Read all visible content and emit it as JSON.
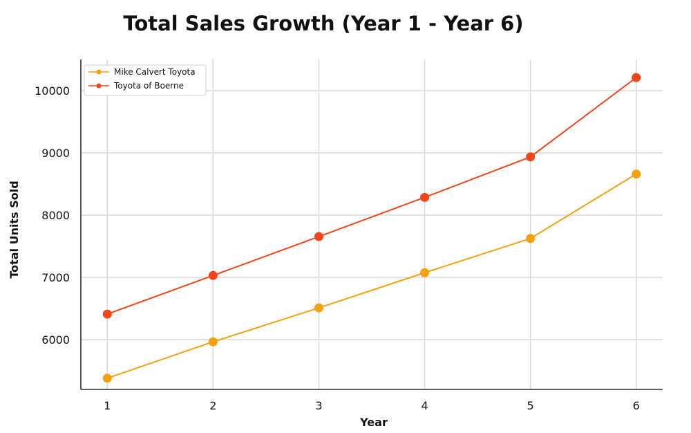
{
  "chart_data": {
    "type": "line",
    "title": "Total Sales Growth (Year 1 - Year 6)",
    "xlabel": "Year",
    "ylabel": "Total Units Sold",
    "x": [
      1,
      2,
      3,
      4,
      5,
      6
    ],
    "x_ticks": [
      "1",
      "2",
      "3",
      "4",
      "5",
      "6"
    ],
    "y_ticks": [
      "6000",
      "7000",
      "8000",
      "9000",
      "10000"
    ],
    "ylim": [
      5200,
      10500
    ],
    "grid": true,
    "legend_position": "top-left",
    "series": [
      {
        "name": "Mike Calvert Toyota",
        "color": "#f5a00f",
        "values": [
          5380,
          5965,
          6510,
          7075,
          7625,
          8660
        ]
      },
      {
        "name": "Toyota of Boerne",
        "color": "#f2461a",
        "values": [
          6410,
          7030,
          7655,
          8285,
          8935,
          10210
        ]
      }
    ]
  }
}
